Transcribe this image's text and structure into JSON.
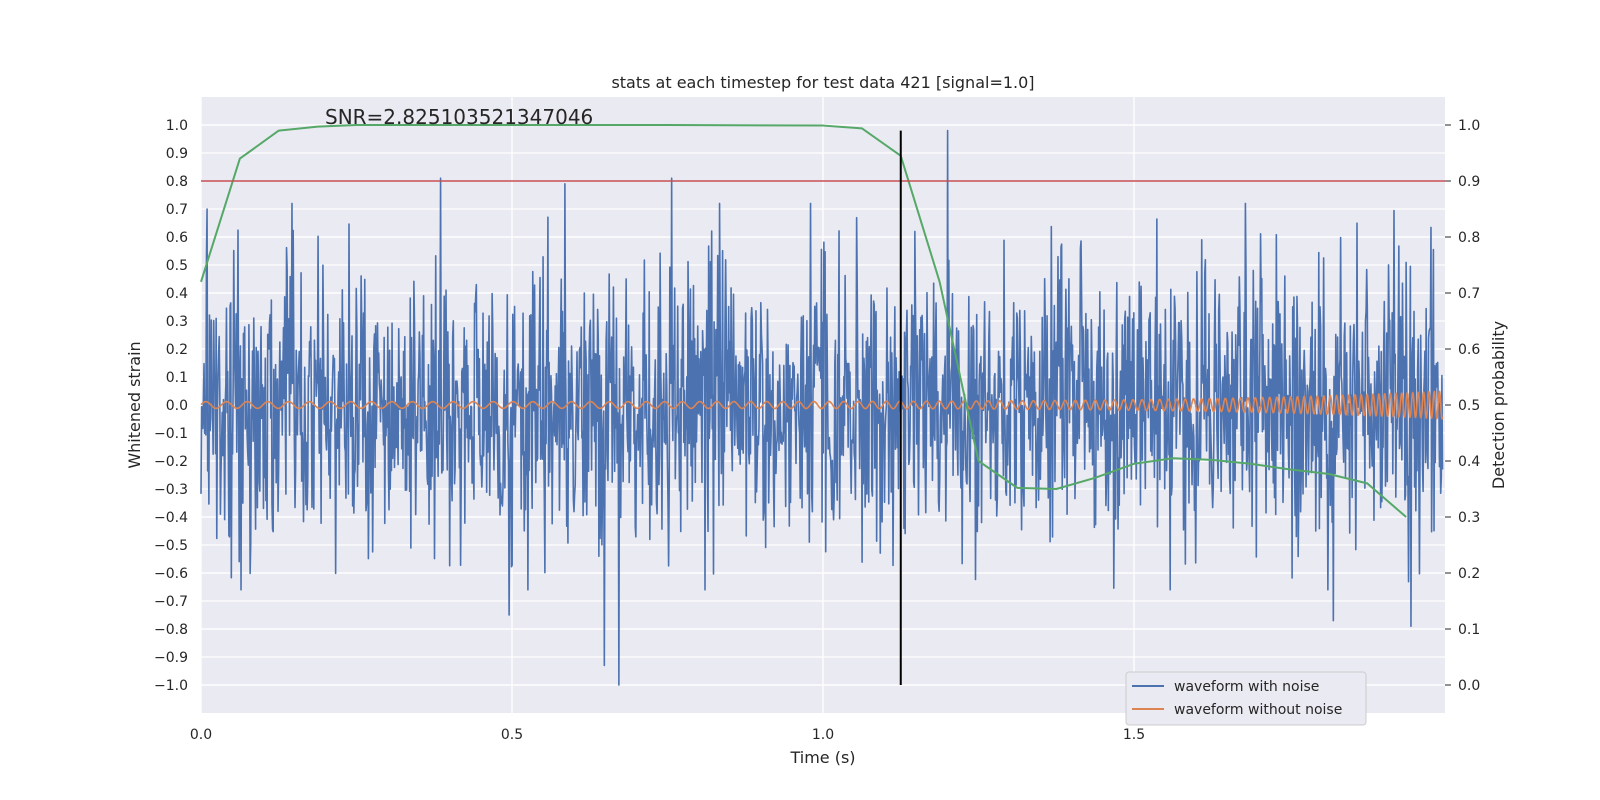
{
  "chart_data": {
    "type": "line",
    "title": "stats at each timestep for test data 421 [signal=1.0]",
    "xlabel": "Time (s)",
    "ylabel": "Whitened strain",
    "y2label": "Detection probability",
    "annotation": "SNR=2.825103521347046",
    "xlim": [
      0,
      2.0
    ],
    "ylim": [
      -1.1,
      1.1
    ],
    "y2lim": [
      -0.05,
      1.05
    ],
    "xticks": [
      "0.0",
      "0.5",
      "1.0",
      "1.5"
    ],
    "yticks": [
      "1.0",
      "0.9",
      "0.8",
      "0.7",
      "0.6",
      "0.5",
      "0.4",
      "0.3",
      "0.2",
      "0.1",
      "0.0",
      "−0.1",
      "−0.2",
      "−0.3",
      "−0.4",
      "−0.5",
      "−0.6",
      "−0.7",
      "−0.8",
      "−0.9",
      "−1.0"
    ],
    "y2ticks": [
      "1.0",
      "0.9",
      "0.8",
      "0.7",
      "0.6",
      "0.5",
      "0.4",
      "0.3",
      "0.2",
      "0.1",
      "0.0"
    ],
    "grid": true,
    "legend_position": "lower-right",
    "threshold": {
      "value": 0.9,
      "axis": "right",
      "color": "#c44e52"
    },
    "event_marker": {
      "x": 1.125,
      "y_from": -1.0,
      "y_to": 0.98,
      "color": "#000000"
    },
    "series": [
      {
        "name": "waveform with noise",
        "axis": "left",
        "color": "#4c72b0",
        "kind": "noise",
        "samples": 2048,
        "amplitude_std": 0.24,
        "spikes": [
          {
            "x": 0.385,
            "y": 0.81
          },
          {
            "x": 0.585,
            "y": 0.79
          },
          {
            "x": 0.757,
            "y": 0.81
          },
          {
            "x": 1.2,
            "y": 0.98
          },
          {
            "x": 0.672,
            "y": -1.0
          },
          {
            "x": 0.648,
            "y": -0.93
          },
          {
            "x": 0.495,
            "y": -0.75
          },
          {
            "x": 1.82,
            "y": -0.77
          },
          {
            "x": 1.945,
            "y": -0.79
          },
          {
            "x": 0.01,
            "y": 0.7
          }
        ]
      },
      {
        "name": "waveform without noise",
        "axis": "left",
        "color": "#dd8452",
        "kind": "chirp",
        "f0": 30,
        "f1": 120,
        "a0": 0.012,
        "a1": 0.05
      },
      {
        "name": "",
        "axis": "right",
        "color": "#55a868",
        "kind": "line",
        "x": [
          0.0,
          0.0625,
          0.125,
          0.1875,
          0.25,
          0.5,
          0.75,
          1.0,
          1.0625,
          1.125,
          1.1875,
          1.25,
          1.3125,
          1.375,
          1.4375,
          1.5,
          1.5625,
          1.625,
          1.6875,
          1.75,
          1.8125,
          1.875,
          1.9375
        ],
        "y": [
          0.72,
          0.94,
          0.99,
          0.997,
          1.0,
          1.0,
          1.0,
          0.999,
          0.994,
          0.945,
          0.72,
          0.4,
          0.352,
          0.35,
          0.37,
          0.395,
          0.405,
          0.402,
          0.395,
          0.385,
          0.377,
          0.36,
          0.3
        ]
      }
    ]
  }
}
